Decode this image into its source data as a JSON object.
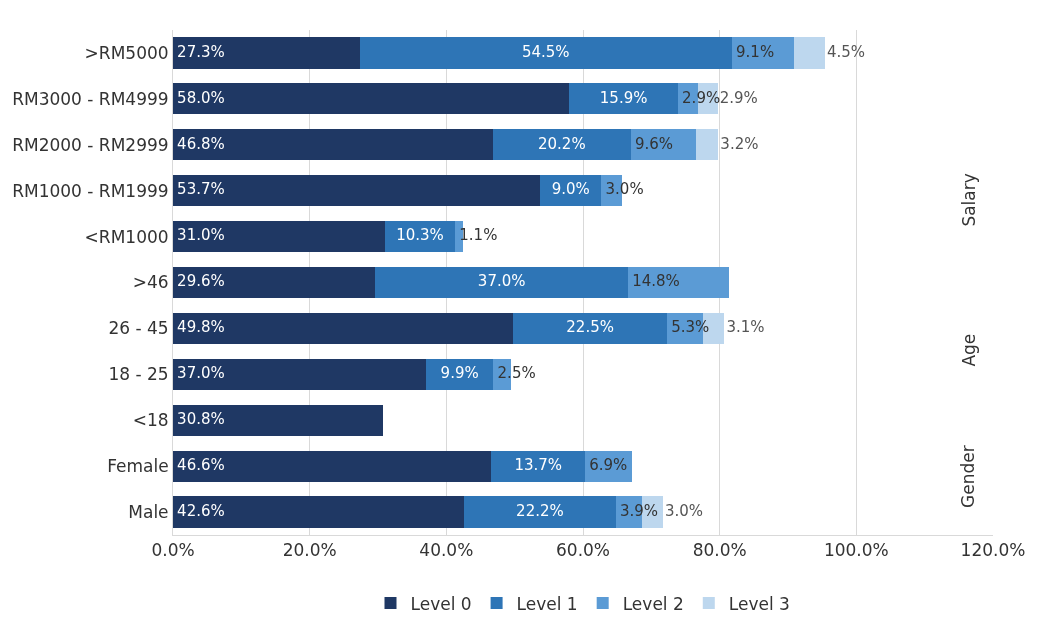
{
  "chart_data": {
    "type": "bar",
    "orientation": "horizontal",
    "stacked": true,
    "categories": [
      ">RM5000",
      "RM3000 - RM4999",
      "RM2000 - RM2999",
      "RM1000 - RM1999",
      "<RM1000",
      ">46",
      "26 - 45",
      "18 - 25",
      "<18",
      "Female",
      "Male"
    ],
    "series": [
      {
        "name": "Level 0",
        "color": "#1f3864",
        "values": [
          27.3,
          58.0,
          46.8,
          53.7,
          31.0,
          29.6,
          49.8,
          37.0,
          30.8,
          46.6,
          42.6
        ],
        "value_labels": [
          "27.3%",
          "58.0%",
          "46.8%",
          "53.7%",
          "31.0%",
          "29.6%",
          "49.8%",
          "37.0%",
          "30.8%",
          "46.6%",
          "42.6%"
        ]
      },
      {
        "name": "Level 1",
        "color": "#2e75b6",
        "values": [
          54.5,
          15.9,
          20.2,
          9.0,
          10.3,
          37.0,
          22.5,
          9.9,
          null,
          13.7,
          22.2
        ],
        "value_labels": [
          "54.5%",
          "15.9%",
          "20.2%",
          "9.0%",
          "10.3%",
          "37.0%",
          "22.5%",
          "9.9%",
          null,
          "13.7%",
          "22.2%"
        ]
      },
      {
        "name": "Level 2",
        "color": "#5b9bd5",
        "values": [
          9.1,
          2.9,
          9.6,
          3.0,
          1.1,
          14.8,
          5.3,
          2.5,
          null,
          6.9,
          3.9
        ],
        "value_labels": [
          "9.1%",
          "2.9%",
          "9.6%",
          "3.0%",
          "1.1%",
          "14.8%",
          "5.3%",
          "2.5%",
          null,
          "6.9%",
          "3.9%"
        ]
      },
      {
        "name": "Level 3",
        "color": "#bdd7ee",
        "values": [
          4.5,
          2.9,
          3.2,
          null,
          null,
          null,
          3.1,
          null,
          null,
          null,
          3.0
        ],
        "value_labels": [
          "4.5%",
          "2.9%",
          "3.2%",
          null,
          null,
          null,
          "3.1%",
          null,
          null,
          null,
          "3.0%"
        ]
      }
    ],
    "xlim": [
      0,
      120
    ],
    "xticks": [
      {
        "value": 0,
        "label": "0.0%"
      },
      {
        "value": 20,
        "label": "20.0%"
      },
      {
        "value": 40,
        "label": "40.0%"
      },
      {
        "value": 60,
        "label": "60.0%"
      },
      {
        "value": 80,
        "label": "80.0%"
      },
      {
        "value": 100,
        "label": "100.0%"
      },
      {
        "value": 120,
        "label": "120.0%"
      }
    ],
    "grid": "x",
    "legend": "bottom",
    "annotations": [
      "Salary",
      "Age",
      "Gender"
    ]
  }
}
